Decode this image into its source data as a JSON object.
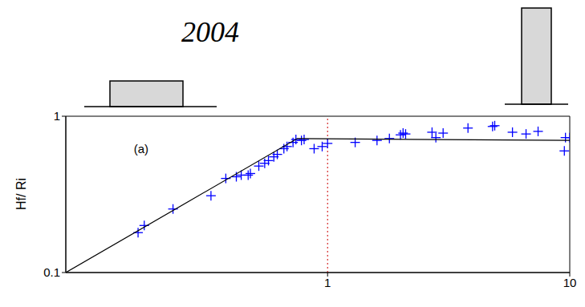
{
  "chart_data": {
    "type": "scatter",
    "title": "2004",
    "ylabel": "Hf/ Ri",
    "log": true,
    "xlim": [
      0.083,
      10
    ],
    "xticks": [
      1,
      10
    ],
    "ylim": [
      0.1,
      1
    ],
    "yticks": [
      0.1,
      1
    ],
    "series": [
      {
        "type": "scatter",
        "color": "#0000ff",
        "marker": "plus",
        "x": [
          0.165,
          0.175,
          0.23,
          0.33,
          0.38,
          0.42,
          0.44,
          0.47,
          0.48,
          0.52,
          0.55,
          0.57,
          0.6,
          0.62,
          0.66,
          0.68,
          0.72,
          0.74,
          0.78,
          0.8,
          0.88,
          0.95,
          1.0,
          1.3,
          1.6,
          1.8,
          2.0,
          2.05,
          2.1,
          2.7,
          2.8,
          3.0,
          3.8,
          4.8,
          4.9,
          5.8,
          6.6,
          7.4,
          9.5,
          9.6,
          10.0
        ],
        "values": [
          0.18,
          0.2,
          0.255,
          0.31,
          0.4,
          0.41,
          0.42,
          0.42,
          0.43,
          0.48,
          0.5,
          0.52,
          0.55,
          0.57,
          0.62,
          0.64,
          0.68,
          0.71,
          0.7,
          0.71,
          0.62,
          0.64,
          0.67,
          0.68,
          0.7,
          0.72,
          0.76,
          0.78,
          0.77,
          0.79,
          0.73,
          0.78,
          0.84,
          0.86,
          0.87,
          0.79,
          0.77,
          0.8,
          0.6,
          0.73,
          0.73
        ]
      },
      {
        "type": "line",
        "color": "#000000",
        "line_style": "solid",
        "x": [
          0.083,
          0.75,
          10
        ],
        "values": [
          0.1,
          0.72,
          0.7
        ]
      }
    ],
    "reference_lines": [
      {
        "x": 1,
        "color": "#cc0000",
        "line_style": "dotted"
      }
    ],
    "annotations": [
      {
        "text": "(a)",
        "x": 0.17,
        "y": 0.62
      }
    ]
  }
}
